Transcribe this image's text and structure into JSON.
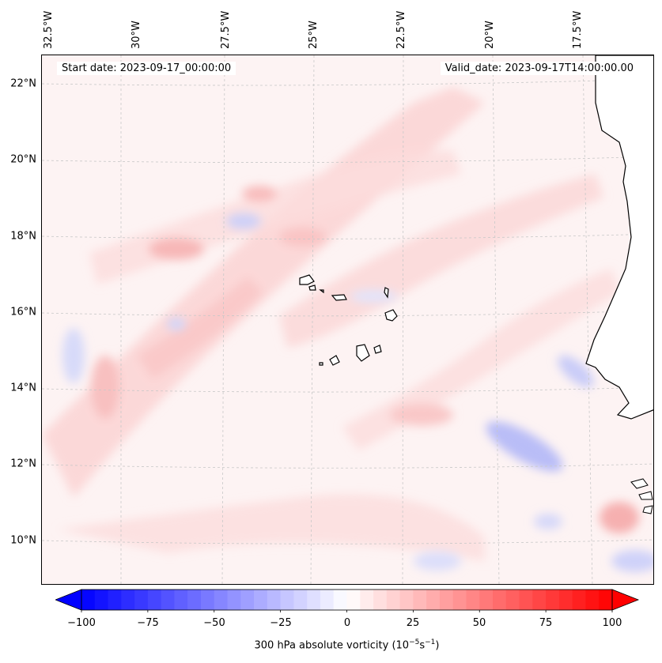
{
  "header": {
    "start_date": "Start date: 2023-09-17_00:00:00",
    "valid_date": "Valid_date: 2023-09-17T14:00:00.00"
  },
  "map": {
    "lat_labels": [
      "22°N",
      "20°N",
      "18°N",
      "16°N",
      "14°N",
      "12°N",
      "10°N"
    ],
    "lon_labels": [
      "32.5°W",
      "30°W",
      "27.5°W",
      "25°W",
      "22.5°W",
      "20°W",
      "17.5°W"
    ],
    "land_color": "#ffffff",
    "coastline_color": "#000000",
    "gridline_color": "#c8c8c8"
  },
  "colorbar": {
    "ticks": [
      "−100",
      "−75",
      "−50",
      "−25",
      "0",
      "25",
      "50",
      "75",
      "100"
    ],
    "vmin": -100,
    "vmax": 100,
    "colormap": "bwr",
    "extend": "both",
    "label_prefix": "300 hPa absolute vorticity (10",
    "label_exp1": "−5",
    "label_mid": "s",
    "label_exp2": "−1",
    "label_suffix": ")"
  }
}
